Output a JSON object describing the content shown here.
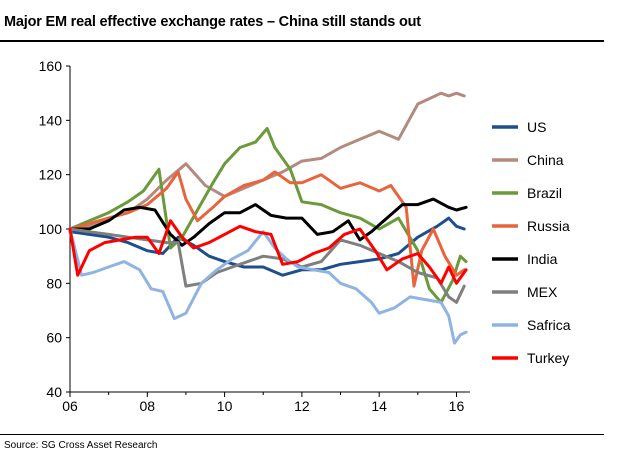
{
  "title": "Major EM real effective exchange rates – China still stands out",
  "source": "Source: SG Cross Asset Research",
  "chart_data": {
    "type": "line",
    "title": "Major EM real effective exchange rates – China still stands out",
    "xlabel": "",
    "ylabel": "",
    "xlim": [
      2006,
      2016.35
    ],
    "ylim": [
      40,
      160
    ],
    "yticks": [
      40,
      60,
      80,
      100,
      120,
      140,
      160
    ],
    "xticks": [
      2006,
      2008,
      2010,
      2012,
      2014,
      2016
    ],
    "xtick_labels": [
      "06",
      "08",
      "10",
      "12",
      "14",
      "16"
    ],
    "grid": false,
    "legend": "right",
    "series": [
      {
        "name": "US",
        "color": "#1f4e8c",
        "x": [
          2006,
          2006.5,
          2007,
          2007.5,
          2008,
          2008.4,
          2008.8,
          2009.2,
          2009.6,
          2010,
          2010.5,
          2011,
          2011.5,
          2012,
          2012.5,
          2013,
          2013.5,
          2014,
          2014.5,
          2015,
          2015.5,
          2015.8,
          2016,
          2016.2
        ],
        "values": [
          99,
          98,
          97,
          95,
          92,
          91,
          97,
          94,
          90,
          88,
          86,
          86,
          83,
          85,
          85,
          87,
          88,
          89,
          91,
          97,
          101,
          104,
          101,
          100
        ]
      },
      {
        "name": "China",
        "color": "#b58a7e",
        "x": [
          2006,
          2006.5,
          2007,
          2007.5,
          2008,
          2008.5,
          2009,
          2009.5,
          2010,
          2010.5,
          2011,
          2011.5,
          2012,
          2012.5,
          2013,
          2013.5,
          2014,
          2014.5,
          2015,
          2015.3,
          2015.6,
          2015.8,
          2016,
          2016.2
        ],
        "values": [
          100,
          101,
          104,
          106,
          111,
          118,
          124,
          116,
          112,
          115,
          118,
          121,
          125,
          126,
          130,
          133,
          136,
          133,
          146,
          148,
          150,
          149,
          150,
          149
        ]
      },
      {
        "name": "Brazil",
        "color": "#6a9a3a",
        "x": [
          2006,
          2006.5,
          2007,
          2007.5,
          2007.9,
          2008.3,
          2008.6,
          2008.9,
          2009.3,
          2009.7,
          2010,
          2010.4,
          2010.8,
          2011.1,
          2011.3,
          2011.7,
          2012,
          2012.5,
          2013,
          2013.5,
          2014,
          2014.5,
          2015,
          2015.3,
          2015.6,
          2015.9,
          2016.1,
          2016.25
        ],
        "values": [
          100,
          103,
          106,
          110,
          114,
          122,
          93,
          97,
          107,
          117,
          124,
          130,
          132,
          137,
          130,
          122,
          110,
          109,
          106,
          104,
          100,
          104,
          92,
          78,
          73,
          81,
          90,
          88
        ]
      },
      {
        "name": "Russia",
        "color": "#e8643c",
        "x": [
          2006,
          2006.5,
          2007,
          2007.5,
          2008,
          2008.5,
          2008.8,
          2009,
          2009.3,
          2009.7,
          2010,
          2010.5,
          2011,
          2011.3,
          2011.7,
          2012,
          2012.5,
          2013,
          2013.5,
          2014,
          2014.3,
          2014.7,
          2014.9,
          2015.1,
          2015.4,
          2015.7,
          2016,
          2016.2
        ],
        "values": [
          100,
          102,
          104,
          106,
          109,
          115,
          121,
          111,
          103,
          108,
          112,
          116,
          118,
          121,
          117,
          117,
          120,
          115,
          117,
          114,
          116,
          108,
          79,
          92,
          100,
          90,
          83,
          85
        ]
      },
      {
        "name": "India",
        "color": "#000000",
        "x": [
          2006,
          2006.5,
          2007,
          2007.4,
          2007.8,
          2008.2,
          2008.6,
          2008.9,
          2009.2,
          2009.6,
          2010,
          2010.4,
          2010.8,
          2011.2,
          2011.6,
          2012,
          2012.4,
          2012.8,
          2013.2,
          2013.5,
          2013.8,
          2014.2,
          2014.6,
          2015,
          2015.4,
          2015.8,
          2016,
          2016.25
        ],
        "values": [
          100,
          100,
          103,
          107,
          108,
          107,
          98,
          94,
          97,
          102,
          106,
          106,
          109,
          105,
          104,
          104,
          98,
          99,
          103,
          96,
          99,
          104,
          109,
          109,
          111,
          108,
          107,
          108
        ]
      },
      {
        "name": "MEX",
        "color": "#7f7f7f",
        "x": [
          2006,
          2006.5,
          2007,
          2007.5,
          2008,
          2008.5,
          2008.8,
          2009,
          2009.4,
          2009.8,
          2010.2,
          2010.6,
          2011,
          2011.5,
          2012,
          2012.5,
          2013,
          2013.5,
          2014,
          2014.5,
          2015,
          2015.5,
          2015.8,
          2016,
          2016.2
        ],
        "values": [
          100,
          99,
          98,
          97,
          96,
          95,
          95,
          79,
          80,
          84,
          86,
          88,
          90,
          89,
          86,
          88,
          96,
          94,
          91,
          88,
          84,
          82,
          75,
          73,
          79
        ]
      },
      {
        "name": "Safrica",
        "color": "#8fb4e3",
        "x": [
          2006,
          2006.3,
          2006.6,
          2007,
          2007.4,
          2007.8,
          2008.1,
          2008.4,
          2008.7,
          2009,
          2009.4,
          2009.8,
          2010.2,
          2010.6,
          2011,
          2011.3,
          2011.6,
          2011.9,
          2012.3,
          2012.7,
          2013,
          2013.4,
          2013.8,
          2014,
          2014.4,
          2014.8,
          2015.2,
          2015.6,
          2015.8,
          2015.95,
          2016.1,
          2016.25
        ],
        "values": [
          100,
          83,
          84,
          86,
          88,
          85,
          78,
          77,
          67,
          69,
          80,
          85,
          89,
          92,
          99,
          93,
          89,
          86,
          85,
          84,
          80,
          78,
          73,
          69,
          71,
          75,
          74,
          73,
          68,
          58,
          61,
          62
        ]
      },
      {
        "name": "Turkey",
        "color": "#ff0000",
        "x": [
          2006,
          2006.2,
          2006.5,
          2006.9,
          2007.3,
          2007.7,
          2008,
          2008.3,
          2008.6,
          2008.9,
          2009.2,
          2009.6,
          2010,
          2010.4,
          2010.8,
          2011.2,
          2011.5,
          2011.9,
          2012.3,
          2012.7,
          2013.1,
          2013.5,
          2013.9,
          2014.2,
          2014.6,
          2015,
          2015.3,
          2015.6,
          2015.8,
          2016,
          2016.25
        ],
        "values": [
          100,
          83,
          92,
          95,
          96,
          97,
          97,
          91,
          103,
          97,
          93,
          95,
          98,
          101,
          99,
          98,
          87,
          88,
          91,
          93,
          98,
          100,
          92,
          85,
          89,
          91,
          86,
          80,
          86,
          80,
          85
        ]
      }
    ]
  }
}
